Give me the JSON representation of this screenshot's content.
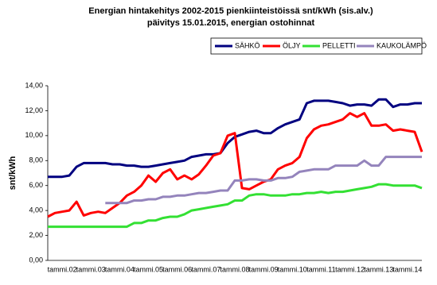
{
  "chart_data": {
    "type": "line",
    "title": "Energian hintakehitys 2002-2015 pienkiinteistöissä  snt/kWh (sis.alv.)",
    "subtitle": "päivitys 15.01.2015, energian ostohinnat",
    "y_label": "snt/kWh",
    "categories": [
      "tammi.02",
      null,
      null,
      null,
      "tammi.03",
      null,
      null,
      null,
      "tammi.04",
      null,
      null,
      null,
      "tammi.05",
      null,
      null,
      null,
      "tammi.06",
      null,
      null,
      null,
      "tammi.07",
      null,
      null,
      null,
      "tammi.08",
      null,
      null,
      null,
      "tammi.09",
      null,
      null,
      null,
      "tammi.10",
      null,
      null,
      null,
      "tammi.11",
      null,
      null,
      null,
      "tammi.12",
      null,
      null,
      null,
      "tammi.13",
      null,
      null,
      null,
      "tammi.14",
      null,
      null,
      null,
      null
    ],
    "series": [
      {
        "name": "SÄHKÖ",
        "color": "#000080",
        "values": [
          6.7,
          6.7,
          6.7,
          6.8,
          7.5,
          7.8,
          7.8,
          7.8,
          7.8,
          7.7,
          7.7,
          7.6,
          7.6,
          7.5,
          7.5,
          7.6,
          7.7,
          7.8,
          7.9,
          8.0,
          8.3,
          8.4,
          8.5,
          8.5,
          8.6,
          9.4,
          9.9,
          10.1,
          10.3,
          10.4,
          10.2,
          10.2,
          10.6,
          10.9,
          11.1,
          11.3,
          12.6,
          12.8,
          12.8,
          12.8,
          12.7,
          12.6,
          12.4,
          12.5,
          12.5,
          12.4,
          12.9,
          12.9,
          12.3,
          12.5,
          12.5,
          12.6,
          12.6
        ]
      },
      {
        "name": "ÖLJY",
        "color": "#ff0000",
        "values": [
          3.5,
          3.8,
          3.9,
          4.0,
          4.7,
          3.6,
          3.8,
          3.9,
          3.8,
          4.2,
          4.6,
          5.2,
          5.5,
          6.0,
          6.8,
          6.3,
          7.0,
          7.3,
          6.5,
          6.8,
          6.5,
          6.9,
          7.6,
          8.4,
          8.6,
          10.0,
          10.2,
          5.8,
          5.7,
          6.0,
          6.3,
          6.5,
          7.3,
          7.6,
          7.8,
          8.3,
          9.8,
          10.5,
          10.8,
          10.9,
          11.1,
          11.3,
          11.8,
          11.5,
          11.8,
          10.8,
          10.8,
          10.9,
          10.4,
          10.5,
          10.4,
          10.3,
          8.7
        ]
      },
      {
        "name": "PELLETTI",
        "color": "#33e033",
        "values": [
          2.7,
          2.7,
          2.7,
          2.7,
          2.7,
          2.7,
          2.7,
          2.7,
          2.7,
          2.7,
          2.7,
          2.7,
          3.0,
          3.0,
          3.2,
          3.2,
          3.4,
          3.5,
          3.5,
          3.7,
          4.0,
          4.1,
          4.2,
          4.3,
          4.4,
          4.5,
          4.8,
          4.8,
          5.2,
          5.3,
          5.3,
          5.2,
          5.2,
          5.2,
          5.3,
          5.3,
          5.4,
          5.4,
          5.5,
          5.4,
          5.5,
          5.5,
          5.6,
          5.7,
          5.8,
          5.9,
          6.1,
          6.1,
          6.0,
          6.0,
          6.0,
          6.0,
          5.8
        ]
      },
      {
        "name": "KAUKOLÄMPÖ",
        "color": "#9484bc",
        "values": [
          null,
          null,
          null,
          null,
          null,
          null,
          null,
          null,
          4.6,
          4.6,
          4.6,
          4.6,
          4.8,
          4.8,
          4.9,
          4.9,
          5.1,
          5.1,
          5.2,
          5.2,
          5.3,
          5.4,
          5.4,
          5.5,
          5.6,
          5.6,
          6.4,
          6.4,
          6.5,
          6.5,
          6.4,
          6.4,
          6.6,
          6.6,
          6.7,
          7.1,
          7.2,
          7.3,
          7.3,
          7.3,
          7.6,
          7.6,
          7.6,
          7.6,
          8.0,
          7.6,
          7.6,
          8.3,
          8.3,
          8.3,
          8.3,
          8.3,
          8.3
        ]
      }
    ],
    "ylim": [
      0,
      14
    ],
    "yticks": [
      {
        "value": 0,
        "label": "0,00"
      },
      {
        "value": 2,
        "label": "2,00"
      },
      {
        "value": 4,
        "label": "4,00"
      },
      {
        "value": 6,
        "label": "6,00"
      },
      {
        "value": 8,
        "label": "8,00"
      },
      {
        "value": 10,
        "label": "10,00"
      },
      {
        "value": 12,
        "label": "12,00"
      },
      {
        "value": 14,
        "label": "14,00"
      }
    ],
    "grid": false
  }
}
